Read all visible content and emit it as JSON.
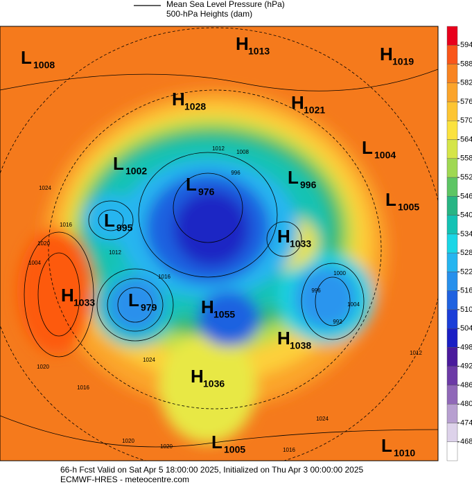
{
  "header": {
    "line1": "Mean Sea Level Pressure (hPa)",
    "line2": "500-hPa Heights (dam)"
  },
  "centers": [
    {
      "letter": "L",
      "value": 1008
    },
    {
      "letter": "H",
      "value": 1013
    },
    {
      "letter": "H",
      "value": 1019
    },
    {
      "letter": "H",
      "value": 1028
    },
    {
      "letter": "H",
      "value": 1021
    },
    {
      "letter": "L",
      "value": 1004
    },
    {
      "letter": "L",
      "value": 1002
    },
    {
      "letter": "L",
      "value": 996
    },
    {
      "letter": "L",
      "value": 976
    },
    {
      "letter": "L",
      "value": 1005
    },
    {
      "letter": "L",
      "value": 995
    },
    {
      "letter": "H",
      "value": 1033
    },
    {
      "letter": "H",
      "value": 1033
    },
    {
      "letter": "L",
      "value": 979
    },
    {
      "letter": "H",
      "value": 1055
    },
    {
      "letter": "H",
      "value": 1038
    },
    {
      "letter": "H",
      "value": 1036
    },
    {
      "letter": "L",
      "value": 1005
    },
    {
      "letter": "L",
      "value": 1010
    }
  ],
  "contour_labels": [
    1012,
    1008,
    996,
    1024,
    1020,
    1016,
    1012,
    1016,
    1004,
    1000,
    996,
    992,
    1004,
    1024,
    1020,
    1016,
    1012,
    1020,
    1020,
    1016,
    1024
  ],
  "colorbar": {
    "levels": [
      594,
      588,
      582,
      576,
      570,
      564,
      558,
      552,
      546,
      540,
      534,
      528,
      522,
      516,
      510,
      504,
      498,
      492,
      486,
      480,
      474,
      468
    ],
    "colors": [
      "#e8001c",
      "#f9561a",
      "#f88421",
      "#fba42a",
      "#fdc532",
      "#fbe23e",
      "#d5e548",
      "#9fd852",
      "#5dc564",
      "#27b584",
      "#13c2b4",
      "#1ad6e6",
      "#25b5f0",
      "#2790ec",
      "#1f62e0",
      "#1b3ed8",
      "#1a1ec4",
      "#4a1a9c",
      "#6c3aa6",
      "#9068b8",
      "#b79fd0",
      "#ddd2ea",
      "#ffffff"
    ]
  },
  "footer": {
    "line1": "66-h Fcst Valid on Sat Apr  5 18:00:00 2025, Initialized on Thu Apr  3 00:00:00 2025",
    "line2": "ECMWF-HRES  - meteocentre.com"
  }
}
